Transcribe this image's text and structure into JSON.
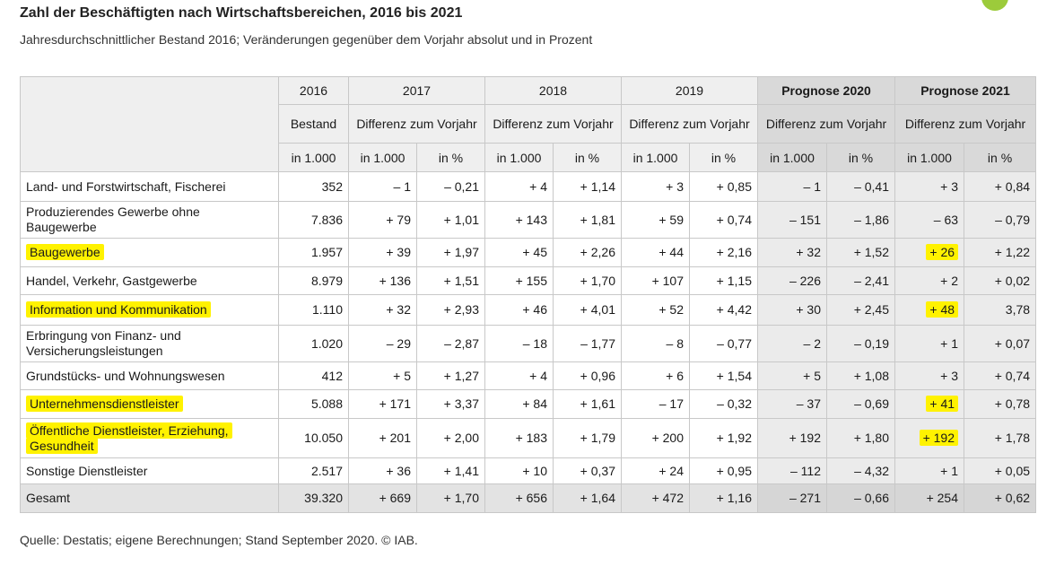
{
  "title": "Zahl der Beschäftigten nach Wirtschaftsbereichen, 2016 bis 2021",
  "subtitle": "Jahresdurchschnittlicher Bestand 2016; Veränderungen gegenüber dem Vorjahr absolut und in Prozent",
  "header": {
    "years": [
      "2016",
      "2017",
      "2018",
      "2019",
      "Prognose 2020",
      "Prognose 2021"
    ],
    "bestand": "Bestand",
    "diff": "Differenz zum Vorjahr",
    "unit_abs": "in 1.000",
    "unit_pct": "in %"
  },
  "rows": [
    {
      "label": "Land- und Forstwirtschaft, Fischerei",
      "highlight": false,
      "v": [
        "352",
        "– 1",
        "– 0,21",
        "+ 4",
        "+ 1,14",
        "+ 3",
        "+ 0,85",
        "– 1",
        "– 0,41",
        "+ 3",
        "+ 0,84"
      ]
    },
    {
      "label": "Produzierendes Gewerbe ohne Baugewerbe",
      "highlight": false,
      "v": [
        "7.836",
        "+ 79",
        "+ 1,01",
        "+ 143",
        "+ 1,81",
        "+ 59",
        "+ 0,74",
        "– 151",
        "– 1,86",
        "– 63",
        "– 0,79"
      ]
    },
    {
      "label": "Baugewerbe",
      "highlight": true,
      "v": [
        "1.957",
        "+ 39",
        "+ 1,97",
        "+ 45",
        "+ 2,26",
        "+ 44",
        "+ 2,16",
        "+ 32",
        "+ 1,52",
        "+ 26",
        "+ 1,22"
      ]
    },
    {
      "label": "Handel, Verkehr, Gastgewerbe",
      "highlight": false,
      "v": [
        "8.979",
        "+ 136",
        "+ 1,51",
        "+ 155",
        "+ 1,70",
        "+ 107",
        "+ 1,15",
        "– 226",
        "– 2,41",
        "+ 2",
        "+ 0,02"
      ]
    },
    {
      "label": "Information und Kommunikation",
      "highlight": true,
      "v": [
        "1.110",
        "+ 32",
        "+ 2,93",
        "+ 46",
        "+ 4,01",
        "+ 52",
        "+ 4,42",
        "+ 30",
        "+ 2,45",
        "+ 48",
        "3,78"
      ]
    },
    {
      "label": "Erbringung von Finanz- und Versicherungsleistungen",
      "highlight": false,
      "v": [
        "1.020",
        "– 29",
        "– 2,87",
        "– 18",
        "– 1,77",
        "– 8",
        "– 0,77",
        "– 2",
        "– 0,19",
        "+ 1",
        "+ 0,07"
      ]
    },
    {
      "label": "Grundstücks- und Wohnungswesen",
      "highlight": false,
      "v": [
        "412",
        "+ 5",
        "+ 1,27",
        "+ 4",
        "+ 0,96",
        "+ 6",
        "+ 1,54",
        "+ 5",
        "+ 1,08",
        "+ 3",
        "+ 0,74"
      ]
    },
    {
      "label": "Unternehmensdienstleister",
      "highlight": true,
      "v": [
        "5.088",
        "+ 171",
        "+ 3,37",
        "+ 84",
        "+ 1,61",
        "– 17",
        "– 0,32",
        "– 37",
        "– 0,69",
        "+ 41",
        "+ 0,78"
      ]
    },
    {
      "label": "Öffentliche Dienstleister, Erziehung, Gesundheit",
      "highlight": true,
      "v": [
        "10.050",
        "+ 201",
        "+ 2,00",
        "+ 183",
        "+ 1,79",
        "+ 200",
        "+ 1,92",
        "+ 192",
        "+ 1,80",
        "+ 192",
        "+ 1,78"
      ]
    },
    {
      "label": "Sonstige Dienstleister",
      "highlight": false,
      "v": [
        "2.517",
        "+ 36",
        "+ 1,41",
        "+ 10",
        "+ 0,37",
        "+ 24",
        "+ 0,95",
        "– 112",
        "– 4,32",
        "+ 1",
        "+ 0,05"
      ]
    },
    {
      "label": "Gesamt",
      "highlight": false,
      "v": [
        "39.320",
        "+ 669",
        "+ 1,70",
        "+ 656",
        "+ 1,64",
        "+ 472",
        "+ 1,16",
        "– 271",
        "– 0,66",
        "+ 254",
        "+ 0,62"
      ]
    }
  ],
  "source": "Quelle: Destatis; eigene Berechnungen; Stand September 2020. © IAB.",
  "colors": {
    "highlight": "#fff200",
    "header": "#efefef",
    "prognose": "#d9d9d9",
    "accent_dot": "#9ccb3b"
  }
}
